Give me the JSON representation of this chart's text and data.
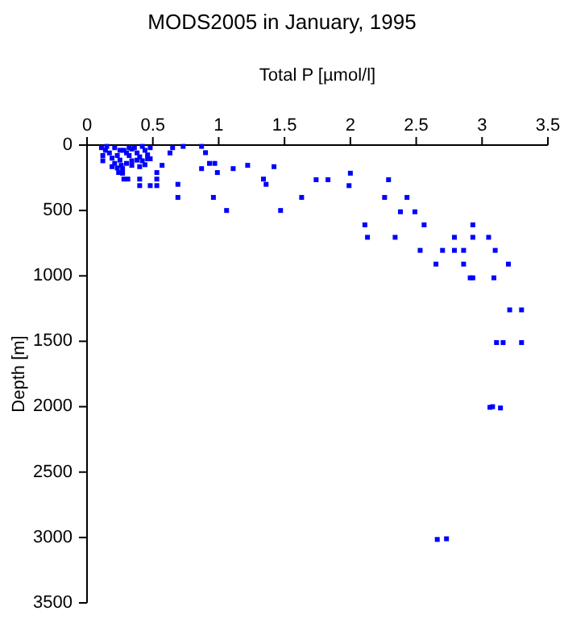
{
  "chart_data": {
    "type": "scatter",
    "title": "MODS2005 in January, 1995",
    "xlabel": "Total P [µmol/l]",
    "ylabel": "Depth [m]",
    "marker": "square",
    "grid": false,
    "xlim": [
      0,
      3.5
    ],
    "xticks": [
      0,
      0.5,
      1,
      1.5,
      2,
      2.5,
      3,
      3.5
    ],
    "ylim": [
      3500,
      0
    ],
    "yticks": [
      0,
      500,
      1000,
      1500,
      2000,
      2500,
      3000,
      3500
    ],
    "series": [
      {
        "color": "#0000ff",
        "x": [
          0.87,
          0.9,
          0.93,
          0.97,
          0.87,
          0.99,
          1.11,
          1.22,
          1.42,
          1.34,
          1.36,
          1.74,
          1.63,
          1.47,
          1.06,
          0.96,
          0.69,
          0.69,
          0.65,
          0.73,
          0.63,
          0.57,
          0.53,
          0.53,
          0.53,
          0.48,
          0.4,
          0.4,
          0.31,
          0.28,
          0.27,
          1.83,
          2.0,
          1.99,
          2.29,
          2.26,
          2.43,
          2.38,
          2.49,
          2.11,
          2.13,
          2.34,
          2.56,
          2.93,
          2.79,
          2.93,
          3.05,
          2.53,
          2.7,
          2.79,
          2.86,
          3.1,
          2.65,
          2.86,
          3.2,
          2.91,
          2.93,
          3.09,
          3.21,
          3.3,
          3.11,
          3.16,
          3.3,
          3.06,
          3.08,
          3.14,
          2.66,
          2.73,
          0.11,
          0.14,
          0.12,
          0.15,
          0.17,
          0.12,
          0.19,
          0.21,
          0.23,
          0.24,
          0.26,
          0.28,
          0.3,
          0.32,
          0.34,
          0.36,
          0.38,
          0.4,
          0.42,
          0.44,
          0.46,
          0.48,
          0.42,
          0.4,
          0.44,
          0.46,
          0.34,
          0.3,
          0.23,
          0.25,
          0.19,
          0.25,
          0.21,
          0.32,
          0.38,
          0.27,
          0.34,
          0.48
        ],
        "values": [
          10,
          58,
          140,
          140,
          180,
          210,
          180,
          155,
          165,
          260,
          300,
          265,
          400,
          500,
          500,
          400,
          300,
          400,
          20,
          10,
          60,
          155,
          210,
          260,
          310,
          310,
          310,
          260,
          260,
          260,
          215,
          265,
          215,
          310,
          265,
          400,
          400,
          510,
          510,
          610,
          705,
          705,
          610,
          610,
          705,
          705,
          705,
          805,
          805,
          805,
          805,
          805,
          910,
          910,
          910,
          1015,
          1015,
          1015,
          1260,
          1260,
          1510,
          1510,
          1510,
          2005,
          2000,
          2010,
          3015,
          3010,
          20,
          40,
          80,
          10,
          60,
          120,
          100,
          140,
          175,
          210,
          155,
          40,
          60,
          80,
          30,
          20,
          60,
          90,
          10,
          40,
          75,
          20,
          120,
          165,
          150,
          105,
          120,
          140,
          80,
          115,
          165,
          40,
          20,
          20,
          115,
          180,
          155,
          105
        ]
      }
    ]
  }
}
